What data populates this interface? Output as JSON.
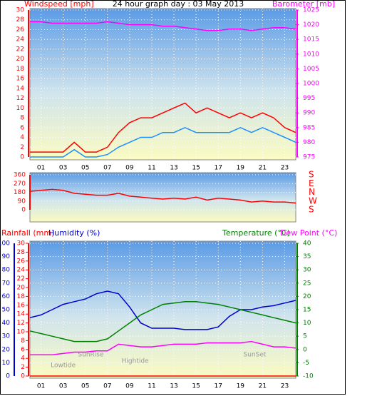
{
  "chart_data": [
    {
      "type": "line",
      "title": "24 hour graph day : 03 May 2013",
      "ylabel": "Windspeed [mph]",
      "y2label": "Barometer [mb]",
      "x": [
        0,
        1,
        2,
        3,
        4,
        5,
        6,
        7,
        8,
        9,
        10,
        11,
        12,
        13,
        14,
        15,
        16,
        17,
        18,
        19,
        20,
        21,
        22,
        23,
        24
      ],
      "xlim": [
        0,
        24
      ],
      "xticks": [
        {
          "value": 1,
          "label": "01"
        },
        {
          "value": 3,
          "label": "03"
        },
        {
          "value": 5,
          "label": "05"
        },
        {
          "value": 7,
          "label": "07"
        },
        {
          "value": 9,
          "label": "09"
        },
        {
          "value": 11,
          "label": "11"
        },
        {
          "value": 13,
          "label": "13"
        },
        {
          "value": 15,
          "label": "15"
        },
        {
          "value": 17,
          "label": "17"
        },
        {
          "value": 19,
          "label": "19"
        },
        {
          "value": 21,
          "label": "21"
        },
        {
          "value": 23,
          "label": "23"
        }
      ],
      "ylim": [
        0,
        30
      ],
      "yticks": [
        0,
        2,
        4,
        6,
        8,
        10,
        12,
        14,
        16,
        18,
        20,
        22,
        24,
        26,
        28,
        30
      ],
      "y2lim": [
        975,
        1025
      ],
      "y2ticks": [
        975,
        980,
        985,
        990,
        995,
        1000,
        1005,
        1010,
        1015,
        1020,
        1025
      ],
      "series": [
        {
          "color": "#ff0000",
          "values": [
            1,
            1,
            1,
            1,
            3,
            1,
            1,
            2,
            5,
            7,
            8,
            8,
            9,
            10,
            11,
            9,
            10,
            9,
            8,
            9,
            8,
            9,
            8,
            6,
            5
          ]
        },
        {
          "color": "#1e90ff",
          "values": [
            0,
            0,
            0,
            0,
            1.5,
            0,
            0,
            0.5,
            2,
            3,
            4,
            4,
            5,
            5,
            6,
            5,
            5,
            5,
            5,
            6,
            5,
            6,
            5,
            4,
            3
          ]
        },
        {
          "color": "#ff00ff",
          "axis": "y2",
          "values": [
            1021,
            1021,
            1020.5,
            1020.5,
            1020.5,
            1020.5,
            1020.5,
            1021,
            1020.5,
            1020,
            1020,
            1020,
            1019.5,
            1019.5,
            1019,
            1018.5,
            1018,
            1018,
            1018.5,
            1018.5,
            1018,
            1018.5,
            1019,
            1019,
            1018.5
          ]
        }
      ]
    },
    {
      "type": "line",
      "x": [
        0,
        1,
        2,
        3,
        4,
        5,
        6,
        7,
        8,
        9,
        10,
        11,
        12,
        13,
        14,
        15,
        16,
        17,
        18,
        19,
        20,
        21,
        22,
        23,
        24
      ],
      "xlim": [
        0,
        24
      ],
      "ylim": [
        0,
        360
      ],
      "yticks": [
        0,
        90,
        180,
        270,
        360
      ],
      "right_labels": [
        "S",
        "E",
        "N",
        "W",
        "S"
      ],
      "series": [
        {
          "color": "#ff0000",
          "values": [
            190,
            200,
            210,
            200,
            170,
            160,
            150,
            150,
            170,
            140,
            130,
            120,
            110,
            120,
            110,
            130,
            100,
            120,
            110,
            100,
            80,
            90,
            80,
            80,
            70
          ]
        }
      ]
    },
    {
      "type": "line",
      "y3label": "Rainfall (mm)",
      "ylabel": "Humidity (%)",
      "y2label": "Temperature (°C)",
      "x": [
        0,
        1,
        2,
        3,
        4,
        5,
        6,
        7,
        8,
        9,
        10,
        11,
        12,
        13,
        14,
        15,
        16,
        17,
        18,
        19,
        20,
        21,
        22,
        23,
        24
      ],
      "xlim": [
        0,
        24
      ],
      "xticks": [
        {
          "value": 1,
          "label": "01"
        },
        {
          "value": 3,
          "label": "03"
        },
        {
          "value": 5,
          "label": "05"
        },
        {
          "value": 7,
          "label": "07"
        },
        {
          "value": 9,
          "label": "09"
        },
        {
          "value": 11,
          "label": "11"
        },
        {
          "value": 13,
          "label": "13"
        },
        {
          "value": 15,
          "label": "15"
        },
        {
          "value": 17,
          "label": "17"
        },
        {
          "value": 19,
          "label": "19"
        },
        {
          "value": 21,
          "label": "21"
        },
        {
          "value": 23,
          "label": "23"
        }
      ],
      "ylim": [
        0,
        100
      ],
      "yticks": [
        0,
        10,
        20,
        30,
        40,
        50,
        60,
        70,
        80,
        90,
        100
      ],
      "y3lim": [
        0,
        30
      ],
      "y3ticks": [
        0,
        2,
        4,
        6,
        8,
        10,
        12,
        14,
        16,
        18,
        20,
        22,
        24,
        26,
        28,
        30
      ],
      "y2lim": [
        -10,
        40
      ],
      "y2ticks": [
        -10,
        -5,
        0,
        5,
        10,
        15,
        20,
        25,
        30,
        35,
        40
      ],
      "annotations": [
        "Lowtide",
        "SunRise",
        "Hightide",
        "SunSet"
      ],
      "series": [
        {
          "color": "#ff0000",
          "axis": "y3",
          "values": [
            0,
            0,
            0,
            0,
            0,
            0,
            0,
            0,
            0,
            0,
            0,
            0,
            0,
            0,
            0,
            0,
            0,
            0,
            0,
            0,
            0,
            0,
            0,
            0,
            0
          ]
        },
        {
          "color": "#0000cc",
          "values": [
            44,
            46,
            50,
            54,
            56,
            58,
            62,
            64,
            62,
            52,
            40,
            36,
            36,
            36,
            35,
            35,
            35,
            37,
            45,
            50,
            50,
            52,
            53,
            55,
            57
          ]
        },
        {
          "color": "#008000",
          "axis": "y2",
          "values": [
            7,
            6,
            5,
            4,
            3,
            3,
            3,
            4,
            7,
            10,
            13,
            15,
            17,
            17.5,
            18,
            18,
            17.5,
            17,
            16,
            15,
            14,
            13,
            12,
            11,
            10
          ]
        },
        {
          "name": "Dew Point (°C)",
          "color": "#ff00ff",
          "axis": "y2",
          "values": [
            -2,
            -2,
            -2,
            -1.5,
            -1,
            -1,
            -0.5,
            -0.5,
            2,
            1.5,
            1,
            1,
            1.5,
            2,
            2,
            2,
            2.5,
            2.5,
            2.5,
            2.5,
            3,
            2,
            1,
            1,
            0.5
          ]
        }
      ]
    }
  ]
}
